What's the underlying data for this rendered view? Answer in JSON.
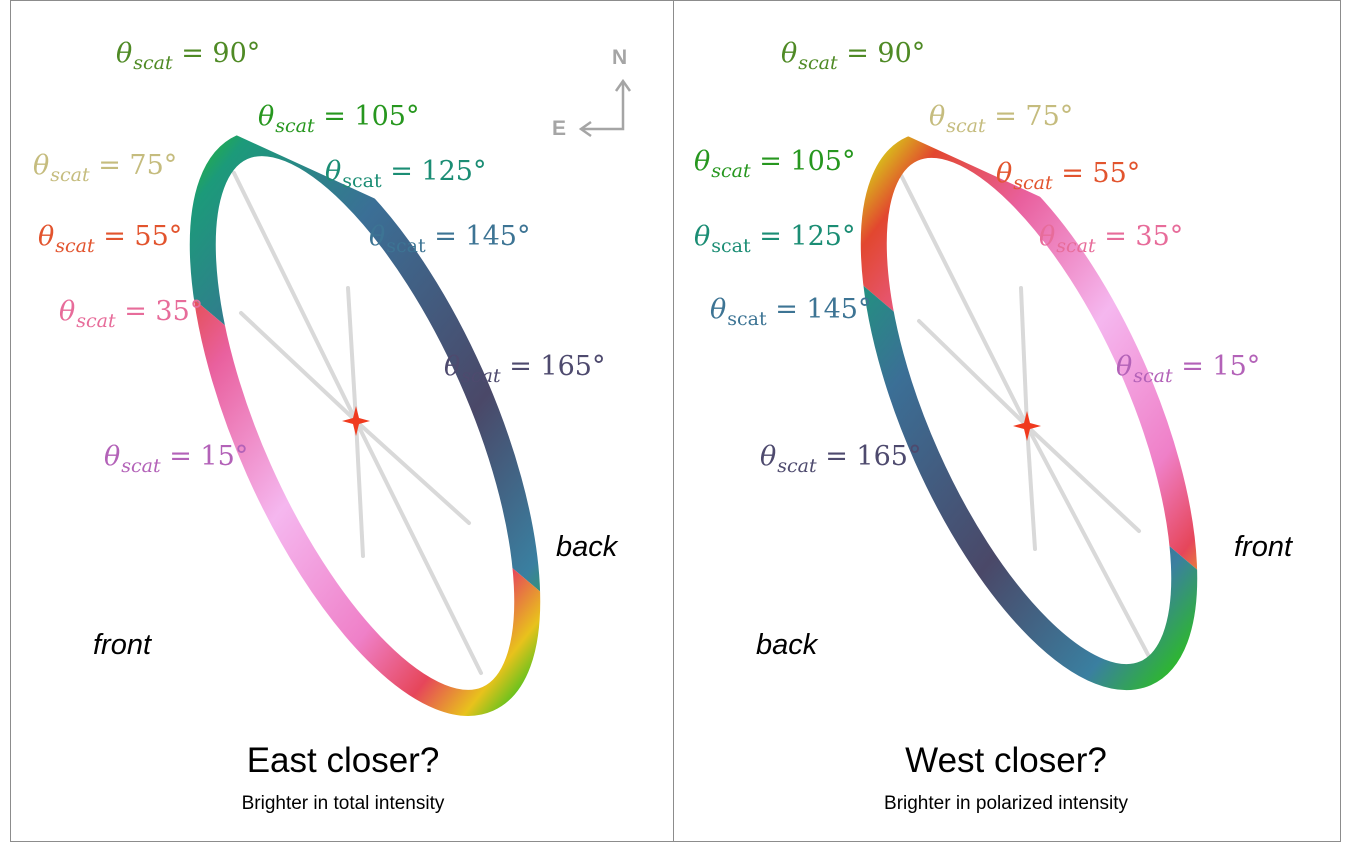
{
  "left": {
    "title": "East closer?",
    "subtitle": "Brighter in total intensity",
    "side_front": "front",
    "side_back": "back",
    "compass": {
      "north": "N",
      "east": "E"
    },
    "labels": [
      {
        "theta": "θ",
        "sub": "scat",
        "rhs": " = 90°",
        "color": "#4f8a25"
      },
      {
        "theta": "θ",
        "sub": "scat",
        "rhs": " = 105°",
        "color": "#27971f"
      },
      {
        "theta": "θ",
        "sub": "scat",
        "rhs": " = 125°",
        "color": "#1b8d74"
      },
      {
        "theta": "θ",
        "sub": "scat",
        "rhs": " = 145°",
        "color": "#3d7494"
      },
      {
        "theta": "θ",
        "sub": "scat",
        "rhs": " = 165°",
        "color": "#4e4a6e"
      },
      {
        "theta": "θ",
        "sub": "scat",
        "rhs": " = 75°",
        "color": "#c5bc7e"
      },
      {
        "theta": "θ",
        "sub": "scat",
        "rhs": " = 55°",
        "color": "#e2542e"
      },
      {
        "theta": "θ",
        "sub": "scat",
        "rhs": " = 35°",
        "color": "#e76c9a"
      },
      {
        "theta": "θ",
        "sub": "scat",
        "rhs": " = 15°",
        "color": "#b362b8"
      }
    ]
  },
  "right": {
    "title": "West closer?",
    "subtitle": "Brighter in polarized intensity",
    "side_front": "front",
    "side_back": "back",
    "labels": [
      {
        "theta": "θ",
        "sub": "scat",
        "rhs": " = 90°",
        "color": "#4f8a25"
      },
      {
        "theta": "θ",
        "sub": "scat",
        "rhs": " = 75°",
        "color": "#c5bc7e"
      },
      {
        "theta": "θ",
        "sub": "scat",
        "rhs": " = 105°",
        "color": "#27971f"
      },
      {
        "theta": "θ",
        "sub": "scat",
        "rhs": " = 55°",
        "color": "#e2542e"
      },
      {
        "theta": "θ",
        "sub": "scat",
        "rhs": " = 125°",
        "color": "#1b8d74"
      },
      {
        "theta": "θ",
        "sub": "scat",
        "rhs": " = 35°",
        "color": "#e76c9a"
      },
      {
        "theta": "θ",
        "sub": "scat",
        "rhs": " = 145°",
        "color": "#3d7494"
      },
      {
        "theta": "θ",
        "sub": "scat",
        "rhs": " = 15°",
        "color": "#b362b8"
      },
      {
        "theta": "θ",
        "sub": "scat",
        "rhs": " = 165°",
        "color": "#4e4a6e"
      }
    ]
  },
  "colors": {
    "star": "#f03a1e",
    "spokes": "#d9d9d9",
    "compass": "#a5a5a5"
  }
}
